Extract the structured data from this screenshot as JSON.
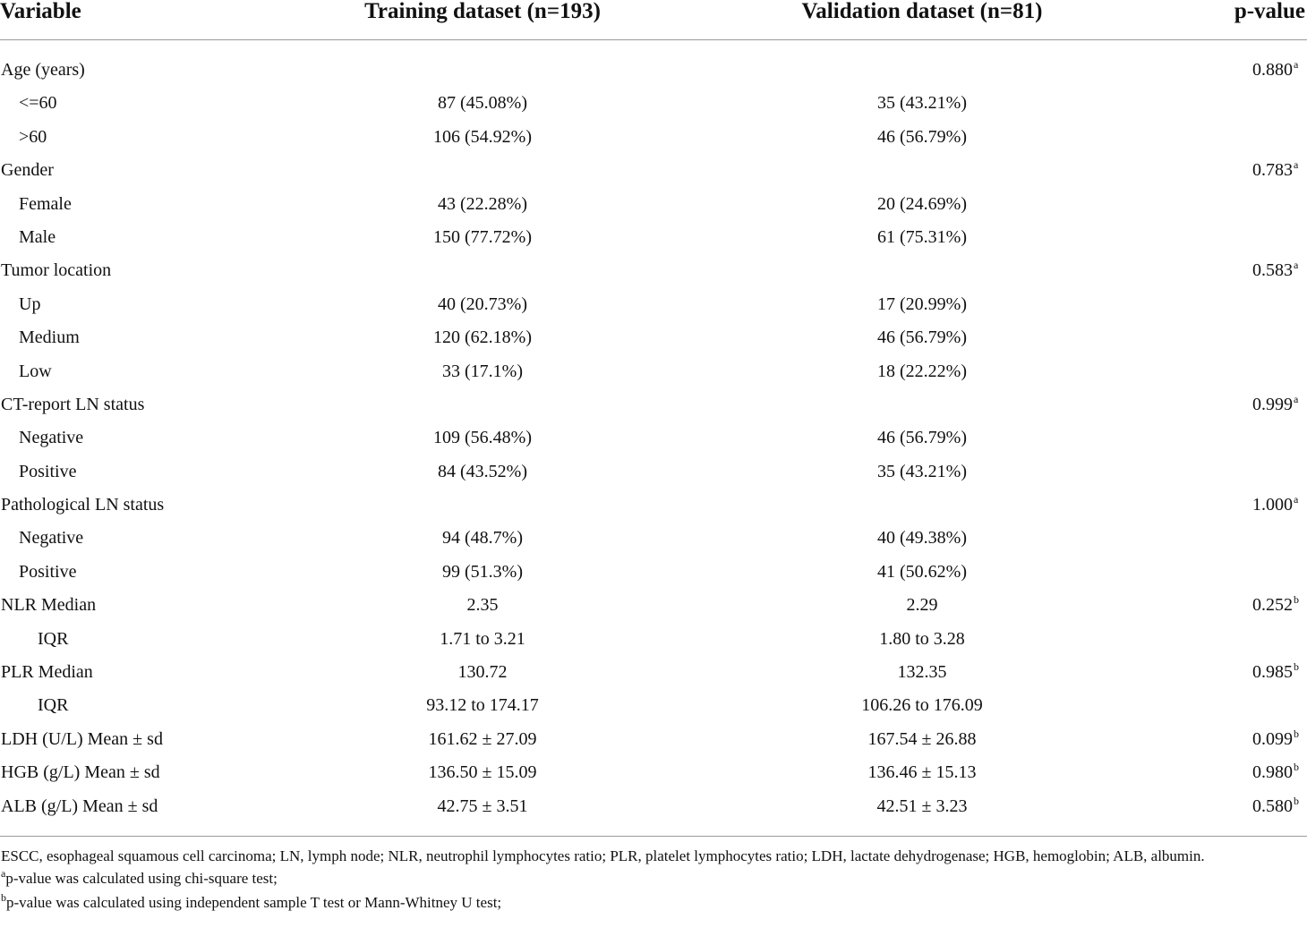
{
  "table": {
    "headers": {
      "variable": "Variable",
      "training": "Training dataset (n=193)",
      "validation": "Validation dataset (n=81)",
      "pvalue": "p-value"
    },
    "rows": [
      {
        "label": "Age (years)",
        "training": "",
        "validation": "",
        "p": "0.880",
        "sup": "a"
      },
      {
        "label": "<=60",
        "training": "87 (45.08%)",
        "validation": "35 (43.21%)",
        "p": "",
        "sup": ""
      },
      {
        "label": ">60",
        "training": "106 (54.92%)",
        "validation": "46 (56.79%)",
        "p": "",
        "sup": ""
      },
      {
        "label": "Gender",
        "training": "",
        "validation": "",
        "p": "0.783",
        "sup": "a"
      },
      {
        "label": "Female",
        "training": "43 (22.28%)",
        "validation": "20 (24.69%)",
        "p": "",
        "sup": ""
      },
      {
        "label": "Male",
        "training": "150 (77.72%)",
        "validation": "61 (75.31%)",
        "p": "",
        "sup": ""
      },
      {
        "label": "Tumor location",
        "training": "",
        "validation": "",
        "p": "0.583",
        "sup": "a"
      },
      {
        "label": "Up",
        "training": "40 (20.73%)",
        "validation": "17 (20.99%)",
        "p": "",
        "sup": ""
      },
      {
        "label": "Medium",
        "training": "120 (62.18%)",
        "validation": "46 (56.79%)",
        "p": "",
        "sup": ""
      },
      {
        "label": "Low",
        "training": "33 (17.1%)",
        "validation": "18 (22.22%)",
        "p": "",
        "sup": ""
      },
      {
        "label": "CT-report LN status",
        "training": "",
        "validation": "",
        "p": "0.999",
        "sup": "a"
      },
      {
        "label": "Negative",
        "training": "109 (56.48%)",
        "validation": "46 (56.79%)",
        "p": "",
        "sup": ""
      },
      {
        "label": "Positive",
        "training": "84 (43.52%)",
        "validation": "35 (43.21%)",
        "p": "",
        "sup": ""
      },
      {
        "label": "Pathological LN status",
        "training": "",
        "validation": "",
        "p": "1.000",
        "sup": "a"
      },
      {
        "label": "Negative",
        "training": "94 (48.7%)",
        "validation": "40 (49.38%)",
        "p": "",
        "sup": ""
      },
      {
        "label": "Positive",
        "training": "99 (51.3%)",
        "validation": "41 (50.62%)",
        "p": "",
        "sup": ""
      },
      {
        "label": "NLR Median",
        "training": "2.35",
        "validation": "2.29",
        "p": "0.252",
        "sup": "b"
      },
      {
        "label": "IQR",
        "training": "1.71 to 3.21",
        "validation": "1.80 to 3.28",
        "p": "",
        "sup": ""
      },
      {
        "label": "PLR Median",
        "training": "130.72",
        "validation": "132.35",
        "p": "0.985",
        "sup": "b"
      },
      {
        "label": "IQR",
        "training": "93.12 to 174.17",
        "validation": "106.26 to 176.09",
        "p": "",
        "sup": ""
      },
      {
        "label": "LDH (U/L) Mean ± sd",
        "training": "161.62 ± 27.09",
        "validation": "167.54 ± 26.88",
        "p": "0.099",
        "sup": "b"
      },
      {
        "label": "HGB (g/L) Mean ± sd",
        "training": "136.50 ± 15.09",
        "validation": "136.46 ± 15.13",
        "p": "0.980",
        "sup": "b"
      },
      {
        "label": "ALB (g/L) Mean ± sd",
        "training": "42.75 ± 3.51",
        "validation": "42.51 ± 3.23",
        "p": "0.580",
        "sup": "b"
      }
    ]
  },
  "footnotes": {
    "abbreviations": "ESCC, esophageal squamous cell carcinoma; LN, lymph node; NLR, neutrophil lymphocytes ratio; PLR, platelet lymphocytes ratio; LDH, lactate dehydrogenase; HGB, hemoglobin; ALB, albumin.",
    "a_mark": "a",
    "a_text": "p-value was calculated using chi-square test;",
    "b_mark": "b",
    "b_text": "p-value was calculated using independent sample T test or Mann-Whitney U test;"
  }
}
